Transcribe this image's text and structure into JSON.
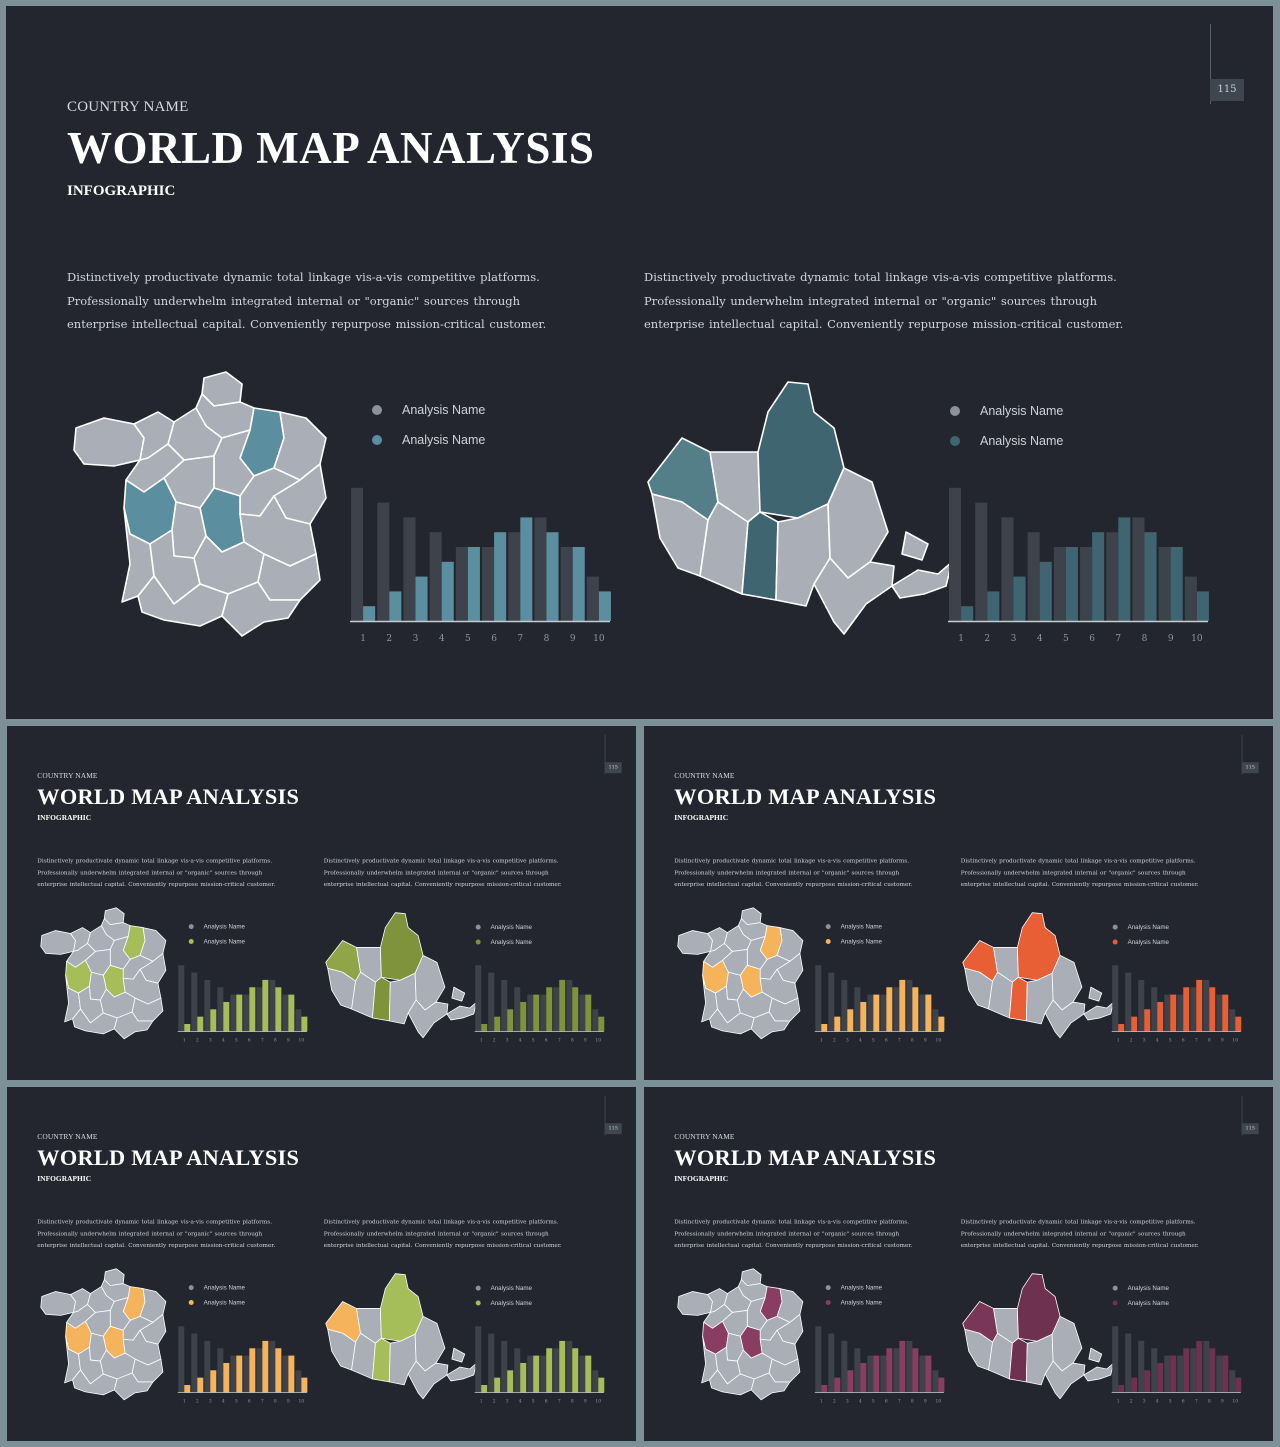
{
  "slides": [
    {
      "id": "slide-0",
      "page": "115",
      "accent": "#5b8e9e",
      "accent_dark": "#3f6670",
      "accent_mid": "#557f88",
      "small": false
    },
    {
      "id": "slide-1",
      "page": "115",
      "accent": "#a6be5a",
      "accent_dark": "#7f933c",
      "accent_mid": "#8fa547",
      "small": true
    },
    {
      "id": "slide-2",
      "page": "115",
      "accent": "#f5b45c",
      "accent_dark": "#e85f35",
      "accent_mid": "#e85f35",
      "small": true
    },
    {
      "id": "slide-3",
      "page": "115",
      "accent": "#f5b45c",
      "accent_dark": "#a6be5a",
      "accent_mid": "#f5b45c",
      "small": true
    },
    {
      "id": "slide-4",
      "page": "115",
      "accent": "#8a3d63",
      "accent_dark": "#6e3150",
      "accent_mid": "#7a3659",
      "small": true
    }
  ],
  "header": {
    "country": "COUNTRY NAME",
    "title": "WORLD MAP ANALYSIS",
    "subtitle": "INFOGRAPHIC"
  },
  "paragraph": "Distinctively productivate dynamic total linkage vis-a-vis competitive platforms. Professionally underwhelm integrated internal or \"organic\" sources through enterprise intellectual capital. Conveniently repurpose mission-critical customer.",
  "legend": [
    "Analysis Name",
    "Analysis Name"
  ],
  "colors": {
    "base_gray": "#3d424b",
    "map_gray": "#a9aeb7",
    "legend_gray": "#8d929a",
    "axis": "#c7ccd3"
  },
  "chart_data": [
    {
      "type": "bar",
      "categories": [
        "1",
        "2",
        "3",
        "4",
        "5",
        "6",
        "7",
        "8",
        "9",
        "10"
      ],
      "series": [
        {
          "values": [
            90,
            80,
            70,
            60,
            50,
            50,
            60,
            70,
            50,
            30
          ]
        },
        {
          "values": [
            10,
            20,
            30,
            40,
            50,
            60,
            70,
            60,
            50,
            20
          ]
        }
      ],
      "ylim": [
        0,
        100
      ]
    },
    {
      "type": "bar",
      "categories": [
        "1",
        "2",
        "3",
        "4",
        "5",
        "6",
        "7",
        "8",
        "9",
        "10"
      ],
      "series": [
        {
          "values": [
            90,
            80,
            70,
            60,
            50,
            50,
            60,
            70,
            50,
            30
          ]
        },
        {
          "values": [
            10,
            20,
            30,
            40,
            50,
            60,
            70,
            60,
            50,
            20
          ]
        }
      ],
      "ylim": [
        0,
        100
      ]
    }
  ]
}
